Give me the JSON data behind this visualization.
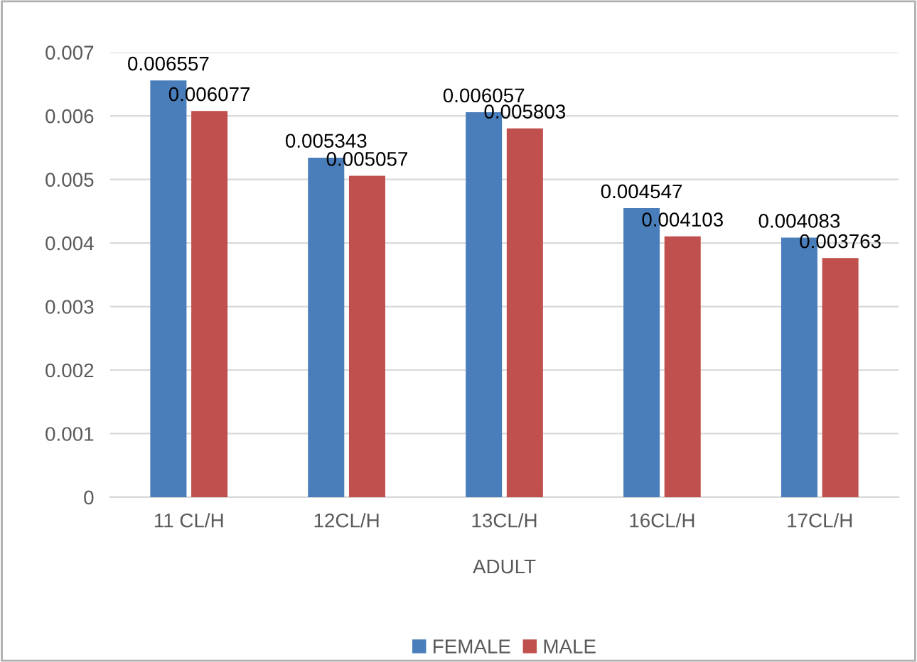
{
  "chart_data": {
    "type": "bar",
    "xlabel": "ADULT",
    "categories": [
      "11 CL/H",
      "12CL/H",
      "13CL/H",
      "16CL/H",
      "17CL/H"
    ],
    "series": [
      {
        "name": "FEMALE",
        "color": "#4a7ebb",
        "values": [
          0.006557,
          0.005343,
          0.006057,
          0.004547,
          0.004083
        ]
      },
      {
        "name": "MALE",
        "color": "#c0504d",
        "values": [
          0.006077,
          0.005057,
          0.005803,
          0.004103,
          0.003763
        ]
      }
    ],
    "ylim": [
      0,
      0.007
    ],
    "yticks": [
      0,
      0.001,
      0.002,
      0.003,
      0.004,
      0.005,
      0.006,
      0.007
    ],
    "grid": "y",
    "legend": "bottom",
    "data_labels": true
  }
}
